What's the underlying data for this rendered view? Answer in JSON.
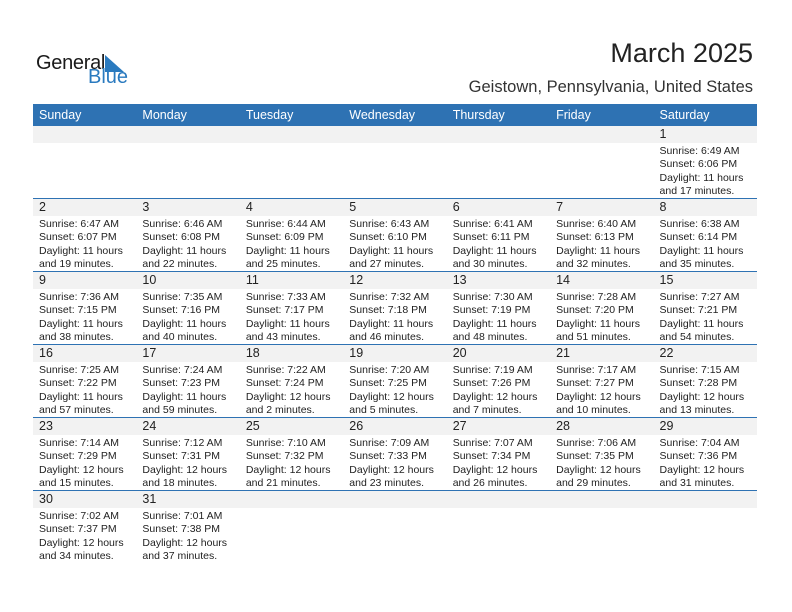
{
  "logo": {
    "word1": "General",
    "word2": "Blue",
    "color": "#2A7ABF"
  },
  "title": "March 2025",
  "subtitle": "Geistown, Pennsylvania, United States",
  "header_color": "#2E72B3",
  "weekdays": [
    "Sunday",
    "Monday",
    "Tuesday",
    "Wednesday",
    "Thursday",
    "Friday",
    "Saturday"
  ],
  "weeks": [
    [
      null,
      null,
      null,
      null,
      null,
      null,
      {
        "day": "1",
        "sunrise": "Sunrise: 6:49 AM",
        "sunset": "Sunset: 6:06 PM",
        "daylight": "Daylight: 11 hours",
        "minutes": "and 17 minutes."
      }
    ],
    [
      {
        "day": "2",
        "sunrise": "Sunrise: 6:47 AM",
        "sunset": "Sunset: 6:07 PM",
        "daylight": "Daylight: 11 hours",
        "minutes": "and 19 minutes."
      },
      {
        "day": "3",
        "sunrise": "Sunrise: 6:46 AM",
        "sunset": "Sunset: 6:08 PM",
        "daylight": "Daylight: 11 hours",
        "minutes": "and 22 minutes."
      },
      {
        "day": "4",
        "sunrise": "Sunrise: 6:44 AM",
        "sunset": "Sunset: 6:09 PM",
        "daylight": "Daylight: 11 hours",
        "minutes": "and 25 minutes."
      },
      {
        "day": "5",
        "sunrise": "Sunrise: 6:43 AM",
        "sunset": "Sunset: 6:10 PM",
        "daylight": "Daylight: 11 hours",
        "minutes": "and 27 minutes."
      },
      {
        "day": "6",
        "sunrise": "Sunrise: 6:41 AM",
        "sunset": "Sunset: 6:11 PM",
        "daylight": "Daylight: 11 hours",
        "minutes": "and 30 minutes."
      },
      {
        "day": "7",
        "sunrise": "Sunrise: 6:40 AM",
        "sunset": "Sunset: 6:13 PM",
        "daylight": "Daylight: 11 hours",
        "minutes": "and 32 minutes."
      },
      {
        "day": "8",
        "sunrise": "Sunrise: 6:38 AM",
        "sunset": "Sunset: 6:14 PM",
        "daylight": "Daylight: 11 hours",
        "minutes": "and 35 minutes."
      }
    ],
    [
      {
        "day": "9",
        "sunrise": "Sunrise: 7:36 AM",
        "sunset": "Sunset: 7:15 PM",
        "daylight": "Daylight: 11 hours",
        "minutes": "and 38 minutes."
      },
      {
        "day": "10",
        "sunrise": "Sunrise: 7:35 AM",
        "sunset": "Sunset: 7:16 PM",
        "daylight": "Daylight: 11 hours",
        "minutes": "and 40 minutes."
      },
      {
        "day": "11",
        "sunrise": "Sunrise: 7:33 AM",
        "sunset": "Sunset: 7:17 PM",
        "daylight": "Daylight: 11 hours",
        "minutes": "and 43 minutes."
      },
      {
        "day": "12",
        "sunrise": "Sunrise: 7:32 AM",
        "sunset": "Sunset: 7:18 PM",
        "daylight": "Daylight: 11 hours",
        "minutes": "and 46 minutes."
      },
      {
        "day": "13",
        "sunrise": "Sunrise: 7:30 AM",
        "sunset": "Sunset: 7:19 PM",
        "daylight": "Daylight: 11 hours",
        "minutes": "and 48 minutes."
      },
      {
        "day": "14",
        "sunrise": "Sunrise: 7:28 AM",
        "sunset": "Sunset: 7:20 PM",
        "daylight": "Daylight: 11 hours",
        "minutes": "and 51 minutes."
      },
      {
        "day": "15",
        "sunrise": "Sunrise: 7:27 AM",
        "sunset": "Sunset: 7:21 PM",
        "daylight": "Daylight: 11 hours",
        "minutes": "and 54 minutes."
      }
    ],
    [
      {
        "day": "16",
        "sunrise": "Sunrise: 7:25 AM",
        "sunset": "Sunset: 7:22 PM",
        "daylight": "Daylight: 11 hours",
        "minutes": "and 57 minutes."
      },
      {
        "day": "17",
        "sunrise": "Sunrise: 7:24 AM",
        "sunset": "Sunset: 7:23 PM",
        "daylight": "Daylight: 11 hours",
        "minutes": "and 59 minutes."
      },
      {
        "day": "18",
        "sunrise": "Sunrise: 7:22 AM",
        "sunset": "Sunset: 7:24 PM",
        "daylight": "Daylight: 12 hours",
        "minutes": "and 2 minutes."
      },
      {
        "day": "19",
        "sunrise": "Sunrise: 7:20 AM",
        "sunset": "Sunset: 7:25 PM",
        "daylight": "Daylight: 12 hours",
        "minutes": "and 5 minutes."
      },
      {
        "day": "20",
        "sunrise": "Sunrise: 7:19 AM",
        "sunset": "Sunset: 7:26 PM",
        "daylight": "Daylight: 12 hours",
        "minutes": "and 7 minutes."
      },
      {
        "day": "21",
        "sunrise": "Sunrise: 7:17 AM",
        "sunset": "Sunset: 7:27 PM",
        "daylight": "Daylight: 12 hours",
        "minutes": "and 10 minutes."
      },
      {
        "day": "22",
        "sunrise": "Sunrise: 7:15 AM",
        "sunset": "Sunset: 7:28 PM",
        "daylight": "Daylight: 12 hours",
        "minutes": "and 13 minutes."
      }
    ],
    [
      {
        "day": "23",
        "sunrise": "Sunrise: 7:14 AM",
        "sunset": "Sunset: 7:29 PM",
        "daylight": "Daylight: 12 hours",
        "minutes": "and 15 minutes."
      },
      {
        "day": "24",
        "sunrise": "Sunrise: 7:12 AM",
        "sunset": "Sunset: 7:31 PM",
        "daylight": "Daylight: 12 hours",
        "minutes": "and 18 minutes."
      },
      {
        "day": "25",
        "sunrise": "Sunrise: 7:10 AM",
        "sunset": "Sunset: 7:32 PM",
        "daylight": "Daylight: 12 hours",
        "minutes": "and 21 minutes."
      },
      {
        "day": "26",
        "sunrise": "Sunrise: 7:09 AM",
        "sunset": "Sunset: 7:33 PM",
        "daylight": "Daylight: 12 hours",
        "minutes": "and 23 minutes."
      },
      {
        "day": "27",
        "sunrise": "Sunrise: 7:07 AM",
        "sunset": "Sunset: 7:34 PM",
        "daylight": "Daylight: 12 hours",
        "minutes": "and 26 minutes."
      },
      {
        "day": "28",
        "sunrise": "Sunrise: 7:06 AM",
        "sunset": "Sunset: 7:35 PM",
        "daylight": "Daylight: 12 hours",
        "minutes": "and 29 minutes."
      },
      {
        "day": "29",
        "sunrise": "Sunrise: 7:04 AM",
        "sunset": "Sunset: 7:36 PM",
        "daylight": "Daylight: 12 hours",
        "minutes": "and 31 minutes."
      }
    ],
    [
      {
        "day": "30",
        "sunrise": "Sunrise: 7:02 AM",
        "sunset": "Sunset: 7:37 PM",
        "daylight": "Daylight: 12 hours",
        "minutes": "and 34 minutes."
      },
      {
        "day": "31",
        "sunrise": "Sunrise: 7:01 AM",
        "sunset": "Sunset: 7:38 PM",
        "daylight": "Daylight: 12 hours",
        "minutes": "and 37 minutes."
      },
      null,
      null,
      null,
      null,
      null
    ]
  ]
}
